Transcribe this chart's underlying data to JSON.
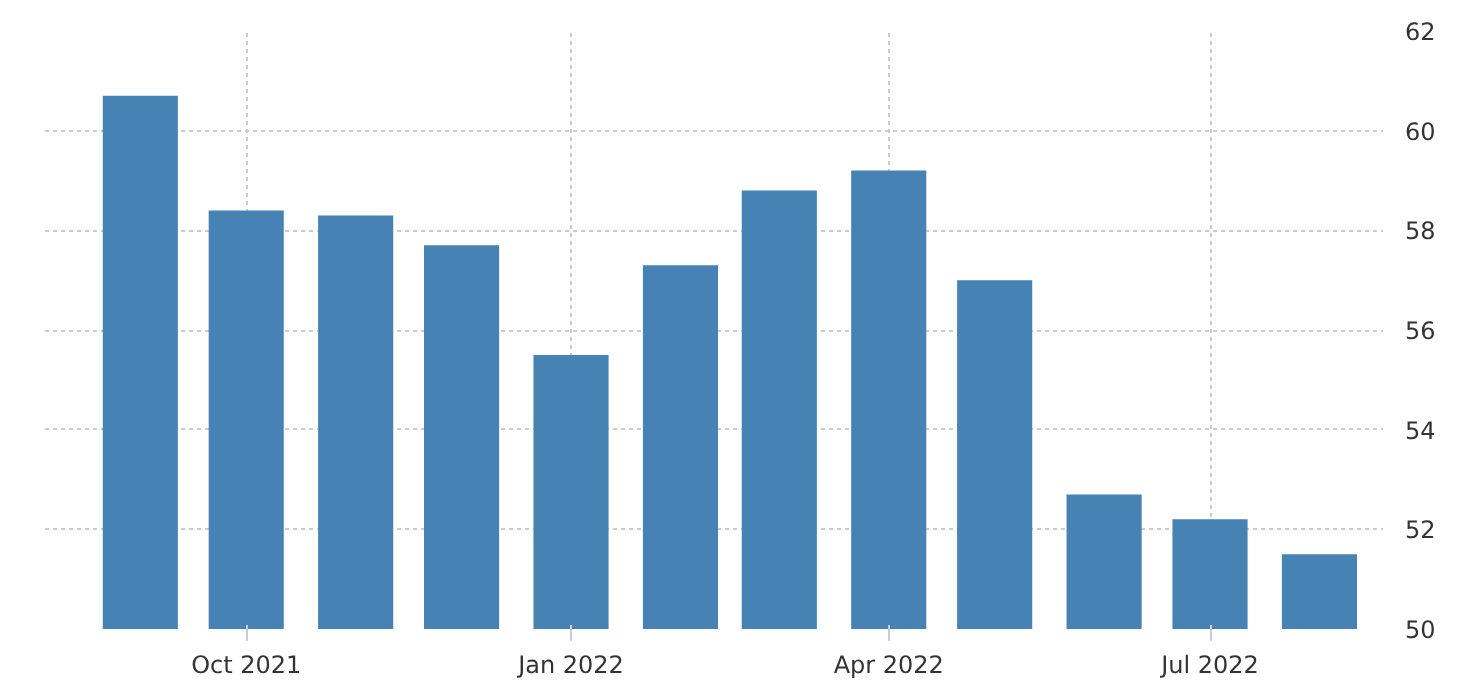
{
  "chart_data": {
    "type": "bar",
    "x": [
      "2021-09",
      "2021-10",
      "2021-11",
      "2021-12",
      "2022-01",
      "2022-02",
      "2022-03",
      "2022-04",
      "2022-05",
      "2022-06",
      "2022-07",
      "2022-08"
    ],
    "values": [
      60.7,
      58.4,
      58.3,
      57.7,
      55.5,
      57.3,
      58.8,
      59.2,
      57.0,
      52.7,
      52.2,
      51.5
    ],
    "color": "#4682b4",
    "xlim": [
      "2021-08-05",
      "2022-08-19"
    ],
    "xticks": [
      {
        "value": "2021-10",
        "label": "Oct 2021"
      },
      {
        "value": "2022-01",
        "label": "Jan 2022"
      },
      {
        "value": "2022-04",
        "label": "Apr 2022"
      },
      {
        "value": "2022-07",
        "label": "Jul 2022"
      }
    ],
    "ylim": [
      50,
      62
    ],
    "yticks": [
      50,
      52,
      54,
      56,
      58,
      60,
      62
    ],
    "grid": true
  }
}
